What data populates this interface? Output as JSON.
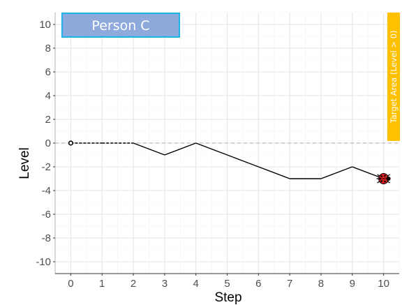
{
  "person_label": "Person C",
  "target_label": "Target Area (Level > 0)",
  "colors": {
    "person_box_fill": "#8ea9db",
    "person_box_border": "#1fb2e6",
    "target_fill": "#ffc000",
    "line": "#000000",
    "zero_line": "#aaaaaa",
    "grid_major": "#ebebeb",
    "ladybug": "#e02020"
  },
  "marker_icon": "ladybug-icon",
  "chart_data": {
    "type": "line",
    "xlabel": "Step",
    "ylabel": "Level",
    "xlim": [
      -0.5,
      10.5
    ],
    "ylim": [
      -11,
      11
    ],
    "x_ticks": [
      0,
      1,
      2,
      3,
      4,
      5,
      6,
      7,
      8,
      9,
      10
    ],
    "y_ticks": [
      10,
      8,
      6,
      4,
      2,
      0,
      -2,
      -4,
      -6,
      -8,
      -10
    ],
    "grid": true,
    "zero_reference_line": "dashed",
    "series": [
      {
        "x": [
          0,
          1,
          2,
          3,
          4,
          5,
          6,
          7,
          8,
          9,
          10
        ],
        "y": [
          0,
          0,
          0,
          -1,
          0,
          -1,
          -2,
          -3,
          -3,
          -2,
          -3
        ]
      }
    ],
    "dashed_segment_x": [
      0,
      2
    ],
    "target_area": "Level > 0"
  }
}
